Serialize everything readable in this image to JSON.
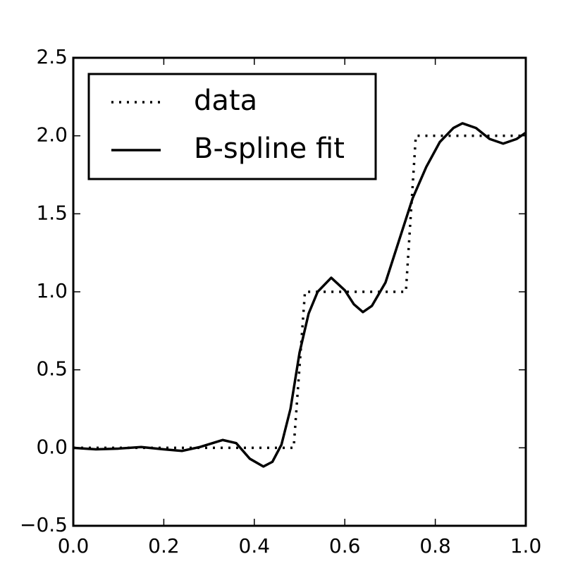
{
  "chart_data": {
    "type": "line",
    "series": [
      {
        "name": "data",
        "color": "#000000",
        "style": "dotted",
        "x": [
          0,
          0.487,
          0.512,
          0.735,
          0.757,
          1.0
        ],
        "values": [
          0,
          0,
          1,
          1,
          2,
          2
        ]
      },
      {
        "name": "B-spline fit",
        "color": "#000000",
        "style": "solid",
        "x": [
          0,
          0.05,
          0.1,
          0.15,
          0.2,
          0.24,
          0.28,
          0.33,
          0.36,
          0.39,
          0.42,
          0.44,
          0.46,
          0.48,
          0.5,
          0.52,
          0.54,
          0.57,
          0.6,
          0.62,
          0.64,
          0.66,
          0.69,
          0.72,
          0.75,
          0.78,
          0.81,
          0.84,
          0.86,
          0.89,
          0.92,
          0.95,
          0.98,
          1.0
        ],
        "values": [
          0,
          -0.01,
          -0.005,
          0.005,
          -0.01,
          -0.02,
          0.005,
          0.05,
          0.03,
          -0.07,
          -0.12,
          -0.09,
          0.02,
          0.25,
          0.61,
          0.86,
          1.0,
          1.09,
          1.01,
          0.92,
          0.87,
          0.91,
          1.06,
          1.33,
          1.6,
          1.8,
          1.96,
          2.05,
          2.08,
          2.05,
          1.98,
          1.95,
          1.98,
          2.02
        ]
      }
    ],
    "xlim": [
      0,
      1.0
    ],
    "ylim": [
      -0.5,
      2.5
    ],
    "xticks": [
      {
        "value": 0,
        "label": "0.0"
      },
      {
        "value": 0.2,
        "label": "0.2"
      },
      {
        "value": 0.4,
        "label": "0.4"
      },
      {
        "value": 0.6,
        "label": "0.6"
      },
      {
        "value": 0.8,
        "label": "0.8"
      },
      {
        "value": 1.0,
        "label": "1.0"
      }
    ],
    "yticks": [
      {
        "value": -0.5,
        "label": "−0.5"
      },
      {
        "value": 0,
        "label": "0.0"
      },
      {
        "value": 0.5,
        "label": "0.5"
      },
      {
        "value": 1.0,
        "label": "1.0"
      },
      {
        "value": 1.5,
        "label": "1.5"
      },
      {
        "value": 2.0,
        "label": "2.0"
      },
      {
        "value": 2.5,
        "label": "2.5"
      }
    ],
    "legend": "upper left",
    "grid": false
  }
}
